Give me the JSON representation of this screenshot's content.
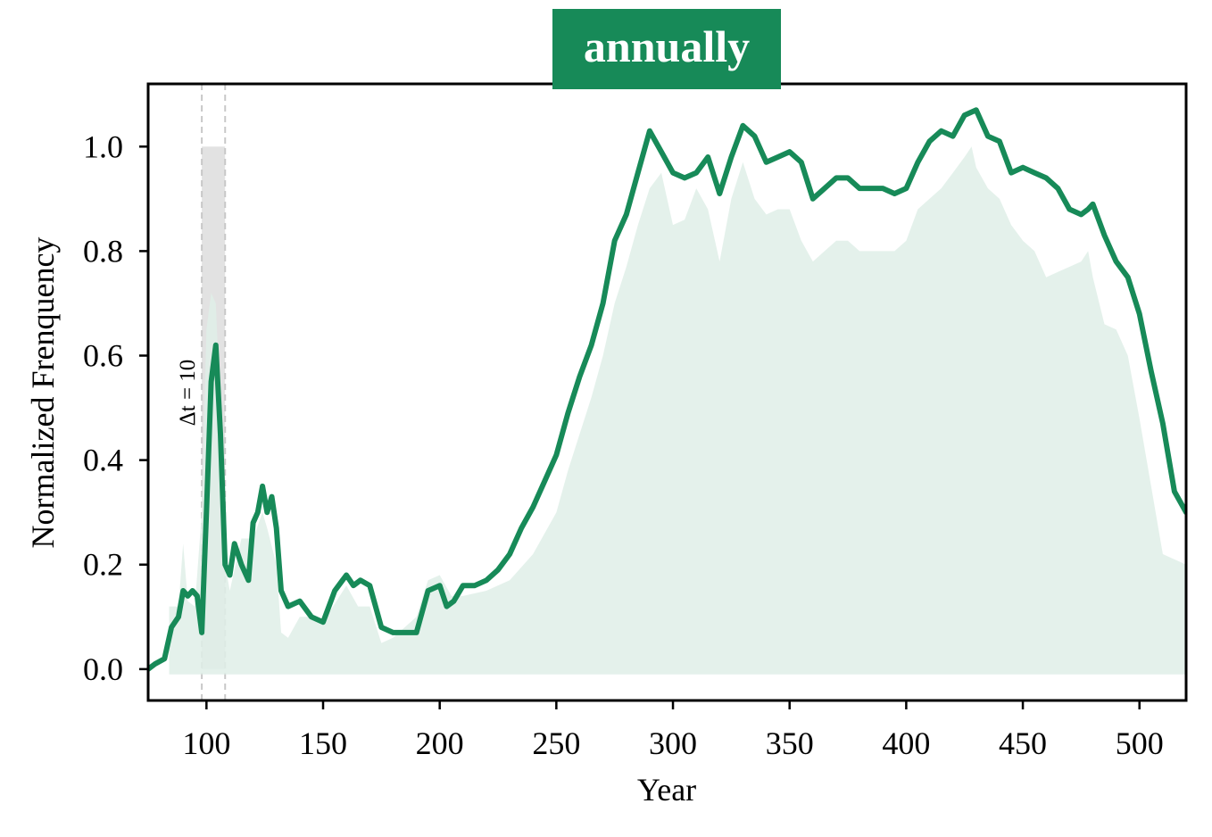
{
  "chart_data": {
    "type": "line",
    "title": "annually",
    "xlabel": "Year",
    "ylabel": "Normalized Frenquency",
    "xlim": [
      75,
      520
    ],
    "ylim": [
      -0.06,
      1.12
    ],
    "xticks": [
      100,
      150,
      200,
      250,
      300,
      350,
      400,
      450,
      500
    ],
    "yticks": [
      0.0,
      0.2,
      0.4,
      0.6,
      0.8,
      1.0
    ],
    "xtick_labels": [
      "100",
      "150",
      "200",
      "250",
      "300",
      "350",
      "400",
      "450",
      "500"
    ],
    "ytick_labels": [
      "0.0",
      "0.2",
      "0.4",
      "0.6",
      "0.8",
      "1.0"
    ],
    "grid": false,
    "colors": {
      "line": "#178a58",
      "area": "#dfefe8",
      "highlight": "#e2e2e2",
      "title_bg": "#178a58",
      "dash": "#c8c8c8"
    },
    "highlight_window": {
      "x_start": 98,
      "x_end": 108,
      "y_top": 1.0,
      "label": "Δt = 10"
    },
    "series": [
      {
        "kind": "line",
        "x": [
          75,
          78,
          82,
          85,
          88,
          90,
          92,
          94,
          96,
          98,
          100,
          102,
          104,
          106,
          108,
          110,
          112,
          115,
          118,
          120,
          122,
          124,
          126,
          128,
          130,
          132,
          135,
          140,
          145,
          150,
          155,
          160,
          163,
          166,
          170,
          175,
          180,
          185,
          190,
          195,
          200,
          203,
          206,
          210,
          215,
          220,
          225,
          230,
          235,
          240,
          245,
          250,
          255,
          260,
          265,
          270,
          275,
          280,
          285,
          290,
          295,
          300,
          305,
          310,
          315,
          320,
          325,
          330,
          335,
          340,
          345,
          350,
          355,
          360,
          365,
          370,
          375,
          380,
          385,
          390,
          395,
          400,
          405,
          410,
          415,
          420,
          425,
          430,
          435,
          440,
          445,
          450,
          455,
          460,
          465,
          470,
          475,
          478,
          480,
          485,
          490,
          495,
          500,
          505,
          510,
          515,
          520
        ],
        "y": [
          0.0,
          0.01,
          0.02,
          0.08,
          0.1,
          0.15,
          0.14,
          0.15,
          0.14,
          0.07,
          0.3,
          0.55,
          0.62,
          0.45,
          0.2,
          0.18,
          0.24,
          0.2,
          0.17,
          0.28,
          0.3,
          0.35,
          0.3,
          0.33,
          0.27,
          0.15,
          0.12,
          0.13,
          0.1,
          0.09,
          0.15,
          0.18,
          0.16,
          0.17,
          0.16,
          0.08,
          0.07,
          0.07,
          0.07,
          0.15,
          0.16,
          0.12,
          0.13,
          0.16,
          0.16,
          0.17,
          0.19,
          0.22,
          0.27,
          0.31,
          0.36,
          0.41,
          0.49,
          0.56,
          0.62,
          0.7,
          0.82,
          0.87,
          0.95,
          1.03,
          0.99,
          0.95,
          0.94,
          0.95,
          0.98,
          0.91,
          0.98,
          1.04,
          1.02,
          0.97,
          0.98,
          0.99,
          0.97,
          0.9,
          0.92,
          0.94,
          0.94,
          0.92,
          0.92,
          0.92,
          0.91,
          0.92,
          0.97,
          1.01,
          1.03,
          1.02,
          1.06,
          1.07,
          1.02,
          1.01,
          0.95,
          0.96,
          0.95,
          0.94,
          0.92,
          0.88,
          0.87,
          0.88,
          0.89,
          0.83,
          0.78,
          0.75,
          0.68,
          0.57,
          0.47,
          0.34,
          0.3
        ]
      },
      {
        "kind": "area",
        "x": [
          84,
          88,
          90,
          92,
          95,
          98,
          100,
          102,
          104,
          106,
          108,
          110,
          115,
          120,
          124,
          126,
          130,
          132,
          135,
          140,
          145,
          150,
          160,
          165,
          170,
          175,
          180,
          190,
          195,
          200,
          205,
          210,
          220,
          230,
          240,
          250,
          255,
          260,
          265,
          270,
          275,
          280,
          285,
          290,
          295,
          300,
          305,
          310,
          315,
          320,
          325,
          330,
          335,
          340,
          345,
          350,
          355,
          360,
          365,
          370,
          375,
          380,
          385,
          390,
          395,
          400,
          405,
          410,
          415,
          420,
          425,
          428,
          430,
          435,
          440,
          445,
          450,
          455,
          460,
          465,
          470,
          475,
          478,
          480,
          485,
          490,
          495,
          500,
          505,
          510,
          515,
          520
        ],
        "y": [
          0.12,
          0.12,
          0.24,
          0.13,
          0.12,
          0.3,
          0.65,
          0.72,
          0.7,
          0.5,
          0.2,
          0.15,
          0.25,
          0.25,
          0.3,
          0.27,
          0.2,
          0.07,
          0.06,
          0.1,
          0.1,
          0.09,
          0.16,
          0.12,
          0.12,
          0.05,
          0.06,
          0.1,
          0.17,
          0.18,
          0.14,
          0.14,
          0.15,
          0.17,
          0.22,
          0.3,
          0.38,
          0.45,
          0.52,
          0.6,
          0.7,
          0.77,
          0.85,
          0.92,
          0.95,
          0.85,
          0.86,
          0.92,
          0.88,
          0.78,
          0.9,
          0.97,
          0.9,
          0.87,
          0.88,
          0.88,
          0.82,
          0.78,
          0.8,
          0.82,
          0.82,
          0.8,
          0.8,
          0.8,
          0.8,
          0.82,
          0.88,
          0.9,
          0.92,
          0.95,
          0.98,
          1.0,
          0.96,
          0.92,
          0.9,
          0.85,
          0.82,
          0.8,
          0.75,
          0.76,
          0.77,
          0.78,
          0.8,
          0.75,
          0.66,
          0.65,
          0.6,
          0.48,
          0.35,
          0.22,
          0.21,
          0.2
        ]
      }
    ]
  }
}
